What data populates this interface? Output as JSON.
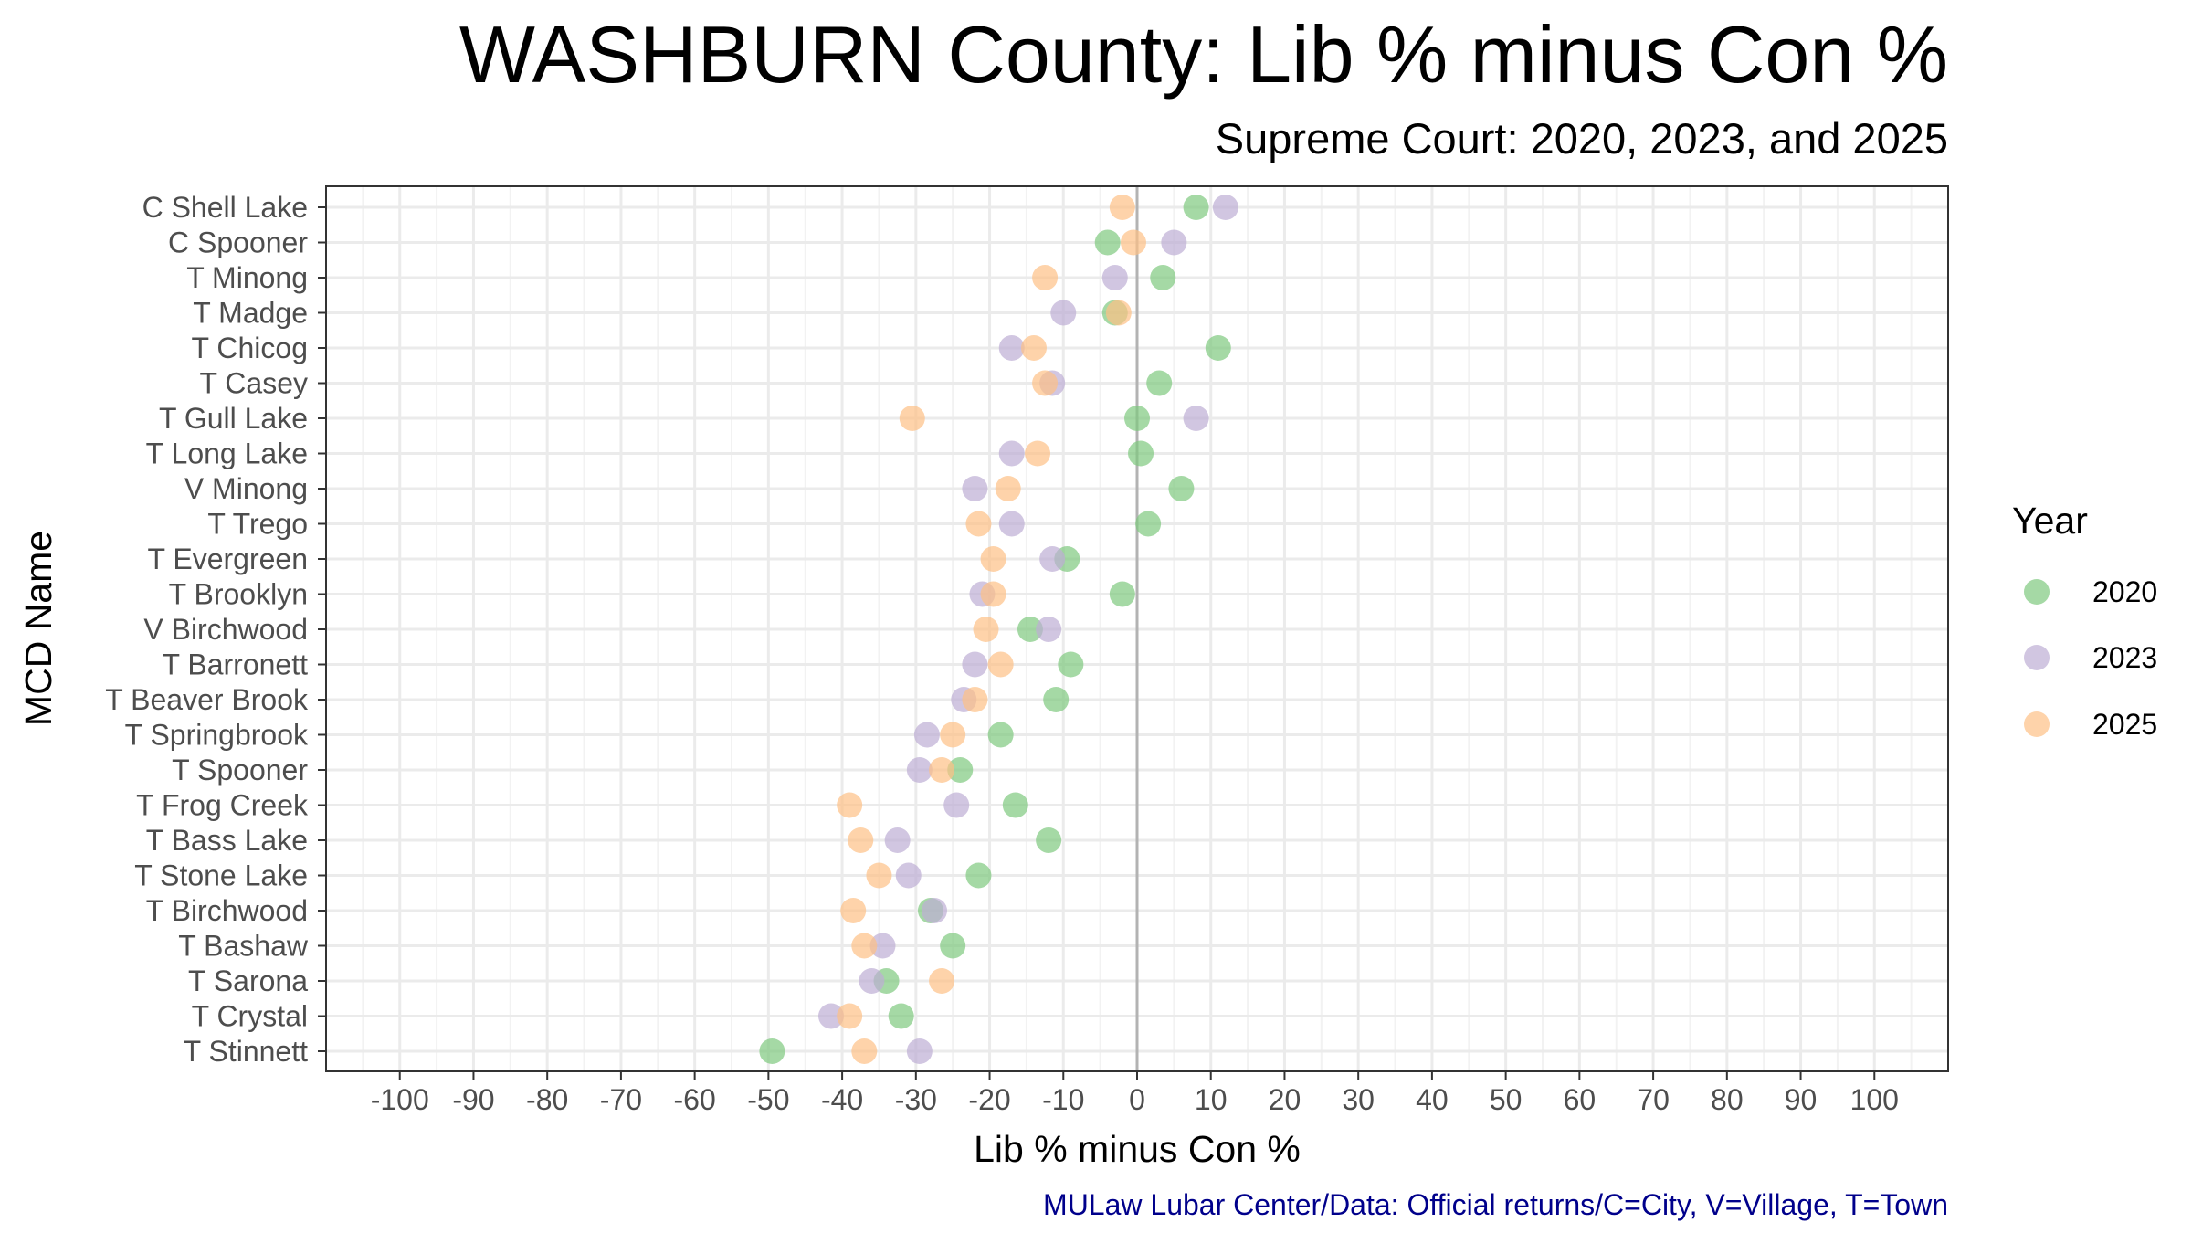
{
  "title": "WASHBURN County: Lib % minus Con %",
  "subtitle": "Supreme Court: 2020, 2023, and 2025",
  "caption": "MULaw Lubar Center/Data: Official returns/C=City, V=Village, T=Town",
  "chart_data": {
    "type": "scatter",
    "title": "WASHBURN County: Lib % minus Con %",
    "subtitle": "Supreme Court: 2020, 2023, and 2025",
    "xlabel": "Lib % minus Con %",
    "ylabel": "MCD Name",
    "xlim": [
      -110,
      110
    ],
    "xticks": [
      -100,
      -90,
      -80,
      -70,
      -60,
      -50,
      -40,
      -30,
      -20,
      -10,
      0,
      10,
      20,
      30,
      40,
      50,
      60,
      70,
      80,
      90,
      100
    ],
    "grid": true,
    "reference_line_x": 0,
    "legend_title": "Year",
    "legend_position": "right",
    "categories": [
      "C Shell Lake",
      "C Spooner",
      "T Minong",
      "T Madge",
      "T Chicog",
      "T Casey",
      "T Gull Lake",
      "T Long Lake",
      "V Minong",
      "T Trego",
      "T Evergreen",
      "T Brooklyn",
      "V Birchwood",
      "T Barronett",
      "T Beaver Brook",
      "T Springbrook",
      "T Spooner",
      "T Frog Creek",
      "T Bass Lake",
      "T Stone Lake",
      "T Birchwood",
      "T Bashaw",
      "T Sarona",
      "T Crystal",
      "T Stinnett"
    ],
    "series": [
      {
        "name": "2020",
        "color": "#7fc97f",
        "values": [
          8,
          -4,
          3.5,
          -3,
          11,
          3,
          0,
          0.5,
          6,
          1.5,
          -9.5,
          -2,
          -14.5,
          -9,
          -11,
          -18.5,
          -24,
          -16.5,
          -12,
          -21.5,
          -28,
          -25,
          -34,
          -32,
          -49.5
        ]
      },
      {
        "name": "2023",
        "color": "#beaed4",
        "values": [
          12,
          5,
          -3,
          -10,
          -17,
          -11.5,
          8,
          -17,
          -22,
          -17,
          -11.5,
          -21,
          -12,
          -22,
          -23.5,
          -28.5,
          -29.5,
          -24.5,
          -32.5,
          -31,
          -27.5,
          -34.5,
          -36,
          -41.5,
          -29.5
        ]
      },
      {
        "name": "2025",
        "color": "#fdc086",
        "values": [
          -2,
          -0.5,
          -12.5,
          -2.5,
          -14,
          -12.5,
          -30.5,
          -13.5,
          -17.5,
          -21.5,
          -19.5,
          -19.5,
          -20.5,
          -18.5,
          -22,
          -25,
          -26.5,
          -39,
          -37.5,
          -35,
          -38.5,
          -37,
          -26.5,
          -39,
          -37
        ]
      }
    ]
  }
}
